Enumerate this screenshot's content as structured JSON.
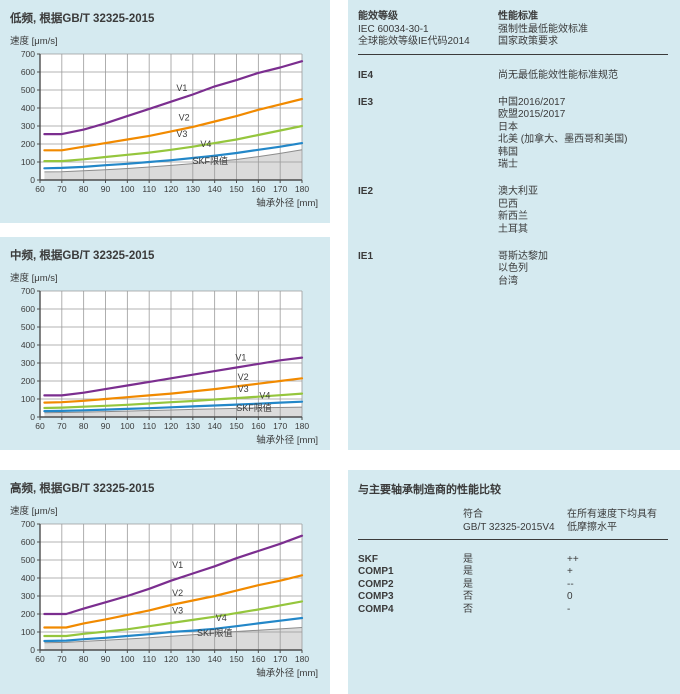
{
  "colors": {
    "panel_bg": "#d5eaf0",
    "text": "#3b3b3b",
    "grid": "#9a9a9a",
    "axis": "#4d4d4d",
    "skf_area_fill": "#dbdbdb",
    "skf_area_stroke": "#8c8c8c",
    "v1": "#7b2e8f",
    "v2": "#f18a00",
    "v3": "#95c63d",
    "v4": "#2387c8"
  },
  "chart_data": [
    {
      "type": "line",
      "title": "低频, 根据GB/T 32325-2015",
      "ylabel": "速度 [μm/s]",
      "xlabel": "轴承外径 [mm]",
      "xlim": [
        60,
        180
      ],
      "ylim": [
        0,
        700
      ],
      "xticks": [
        60,
        70,
        80,
        90,
        100,
        110,
        120,
        130,
        140,
        150,
        160,
        170,
        180
      ],
      "yticks": [
        0,
        100,
        200,
        300,
        400,
        500,
        600,
        700
      ],
      "grid": true,
      "x": [
        62,
        70,
        80,
        90,
        100,
        110,
        120,
        130,
        140,
        150,
        160,
        170,
        180
      ],
      "series": [
        {
          "name": "V1",
          "color": "#7b2e8f",
          "values": [
            255,
            255,
            280,
            315,
            355,
            395,
            435,
            475,
            520,
            555,
            595,
            625,
            660
          ],
          "label_at": [
            125,
            495
          ]
        },
        {
          "name": "V2",
          "color": "#f18a00",
          "values": [
            165,
            165,
            185,
            205,
            225,
            245,
            270,
            295,
            325,
            355,
            390,
            420,
            450
          ],
          "label_at": [
            126,
            330
          ]
        },
        {
          "name": "V3",
          "color": "#95c63d",
          "values": [
            105,
            105,
            115,
            128,
            140,
            152,
            168,
            185,
            205,
            225,
            250,
            275,
            300
          ],
          "label_at": [
            125,
            240
          ]
        },
        {
          "name": "V4",
          "color": "#2387c8",
          "values": [
            65,
            67,
            73,
            82,
            90,
            100,
            110,
            122,
            135,
            150,
            168,
            185,
            205
          ],
          "label_at": [
            136,
            183
          ]
        },
        {
          "name": "SKF限值",
          "type": "area",
          "values": [
            45,
            46,
            51,
            57,
            64,
            72,
            81,
            91,
            102,
            114,
            130,
            148,
            168
          ],
          "label_at": [
            138,
            88
          ]
        }
      ]
    },
    {
      "type": "line",
      "title": "中频, 根据GB/T 32325-2015",
      "ylabel": "速度 [μm/s]",
      "xlabel": "轴承外径 [mm]",
      "xlim": [
        60,
        180
      ],
      "ylim": [
        0,
        700
      ],
      "xticks": [
        60,
        70,
        80,
        90,
        100,
        110,
        120,
        130,
        140,
        150,
        160,
        170,
        180
      ],
      "yticks": [
        0,
        100,
        200,
        300,
        400,
        500,
        600,
        700
      ],
      "grid": true,
      "x": [
        62,
        70,
        80,
        90,
        100,
        110,
        120,
        130,
        140,
        150,
        160,
        170,
        180
      ],
      "series": [
        {
          "name": "V1",
          "color": "#7b2e8f",
          "values": [
            120,
            120,
            135,
            155,
            175,
            195,
            215,
            235,
            255,
            275,
            295,
            315,
            330
          ],
          "label_at": [
            152,
            315
          ]
        },
        {
          "name": "V2",
          "color": "#f18a00",
          "values": [
            80,
            82,
            90,
            100,
            110,
            120,
            130,
            142,
            155,
            170,
            185,
            200,
            215
          ],
          "label_at": [
            153,
            205
          ]
        },
        {
          "name": "V3",
          "color": "#95c63d",
          "values": [
            50,
            52,
            57,
            62,
            68,
            75,
            82,
            89,
            97,
            105,
            113,
            121,
            130
          ],
          "label_at": [
            153,
            140
          ]
        },
        {
          "name": "V4",
          "color": "#2387c8",
          "values": [
            33,
            34,
            37,
            41,
            45,
            49,
            54,
            59,
            64,
            69,
            74,
            80,
            85
          ],
          "label_at": [
            163,
            102
          ]
        },
        {
          "name": "SKF限值",
          "type": "area",
          "values": [
            24,
            25,
            27,
            30,
            33,
            36,
            39,
            42,
            45,
            48,
            51,
            53,
            55
          ],
          "label_at": [
            158,
            32
          ]
        }
      ]
    },
    {
      "type": "line",
      "title": "高频, 根据GB/T 32325-2015",
      "ylabel": "速度 [μm/s]",
      "xlabel": "轴承外径 [mm]",
      "xlim": [
        60,
        180
      ],
      "ylim": [
        0,
        700
      ],
      "xticks": [
        60,
        70,
        80,
        90,
        100,
        110,
        120,
        130,
        140,
        150,
        160,
        170,
        180
      ],
      "yticks": [
        0,
        100,
        200,
        300,
        400,
        500,
        600,
        700
      ],
      "grid": true,
      "x": [
        62,
        72,
        80,
        90,
        100,
        110,
        120,
        130,
        140,
        150,
        160,
        170,
        180
      ],
      "series": [
        {
          "name": "V1",
          "color": "#7b2e8f",
          "values": [
            200,
            200,
            230,
            265,
            300,
            340,
            385,
            425,
            465,
            510,
            550,
            590,
            635
          ],
          "label_at": [
            123,
            455
          ]
        },
        {
          "name": "V2",
          "color": "#f18a00",
          "values": [
            125,
            125,
            148,
            170,
            195,
            220,
            250,
            275,
            300,
            330,
            360,
            385,
            415
          ],
          "label_at": [
            123,
            300
          ]
        },
        {
          "name": "V3",
          "color": "#95c63d",
          "values": [
            78,
            78,
            90,
            102,
            115,
            132,
            150,
            167,
            185,
            205,
            225,
            248,
            270
          ],
          "label_at": [
            123,
            203
          ]
        },
        {
          "name": "V4",
          "color": "#2387c8",
          "values": [
            50,
            52,
            60,
            68,
            78,
            88,
            100,
            108,
            118,
            132,
            148,
            163,
            178
          ],
          "label_at": [
            143,
            160
          ]
        },
        {
          "name": "SKF限值",
          "type": "area",
          "values": [
            40,
            42,
            48,
            54,
            61,
            68,
            76,
            85,
            95,
            103,
            110,
            117,
            125
          ],
          "label_at": [
            140,
            78
          ]
        }
      ]
    }
  ],
  "ie_table": {
    "col1_header": [
      "能效等级",
      "IEC 60034-30-1",
      "全球能效等级IE代码2014"
    ],
    "col2_header": [
      "性能标准",
      "强制性最低能效标准",
      "国家政策要求"
    ],
    "rows": [
      {
        "level": "IE4",
        "items": [
          "尚无最低能效性能标准规范"
        ]
      },
      {
        "level": "IE3",
        "items": [
          "中国2016/2017",
          "欧盟2015/2017",
          "日本",
          "北美 (加拿大、墨西哥和美国)",
          "韩国",
          "瑞士"
        ]
      },
      {
        "level": "IE2",
        "items": [
          "澳大利亚",
          "巴西",
          "新西兰",
          "土耳其"
        ]
      },
      {
        "level": "IE1",
        "items": [
          "哥斯达黎加",
          "以色列",
          "台湾"
        ]
      }
    ]
  },
  "comparison_table": {
    "title": "与主要轴承制造商的性能比较",
    "col2_header": [
      "符合",
      "GB/T 32325-2015V4"
    ],
    "col3_header": [
      "在所有速度下均具有",
      "低摩擦水平"
    ],
    "rows": [
      {
        "name": "SKF",
        "compliant": "是",
        "friction": "++"
      },
      {
        "name": "COMP1",
        "compliant": "是",
        "friction": "+"
      },
      {
        "name": "COMP2",
        "compliant": "是",
        "friction": "--"
      },
      {
        "name": "COMP3",
        "compliant": "否",
        "friction": "0"
      },
      {
        "name": "COMP4",
        "compliant": "否",
        "friction": "-"
      }
    ]
  }
}
